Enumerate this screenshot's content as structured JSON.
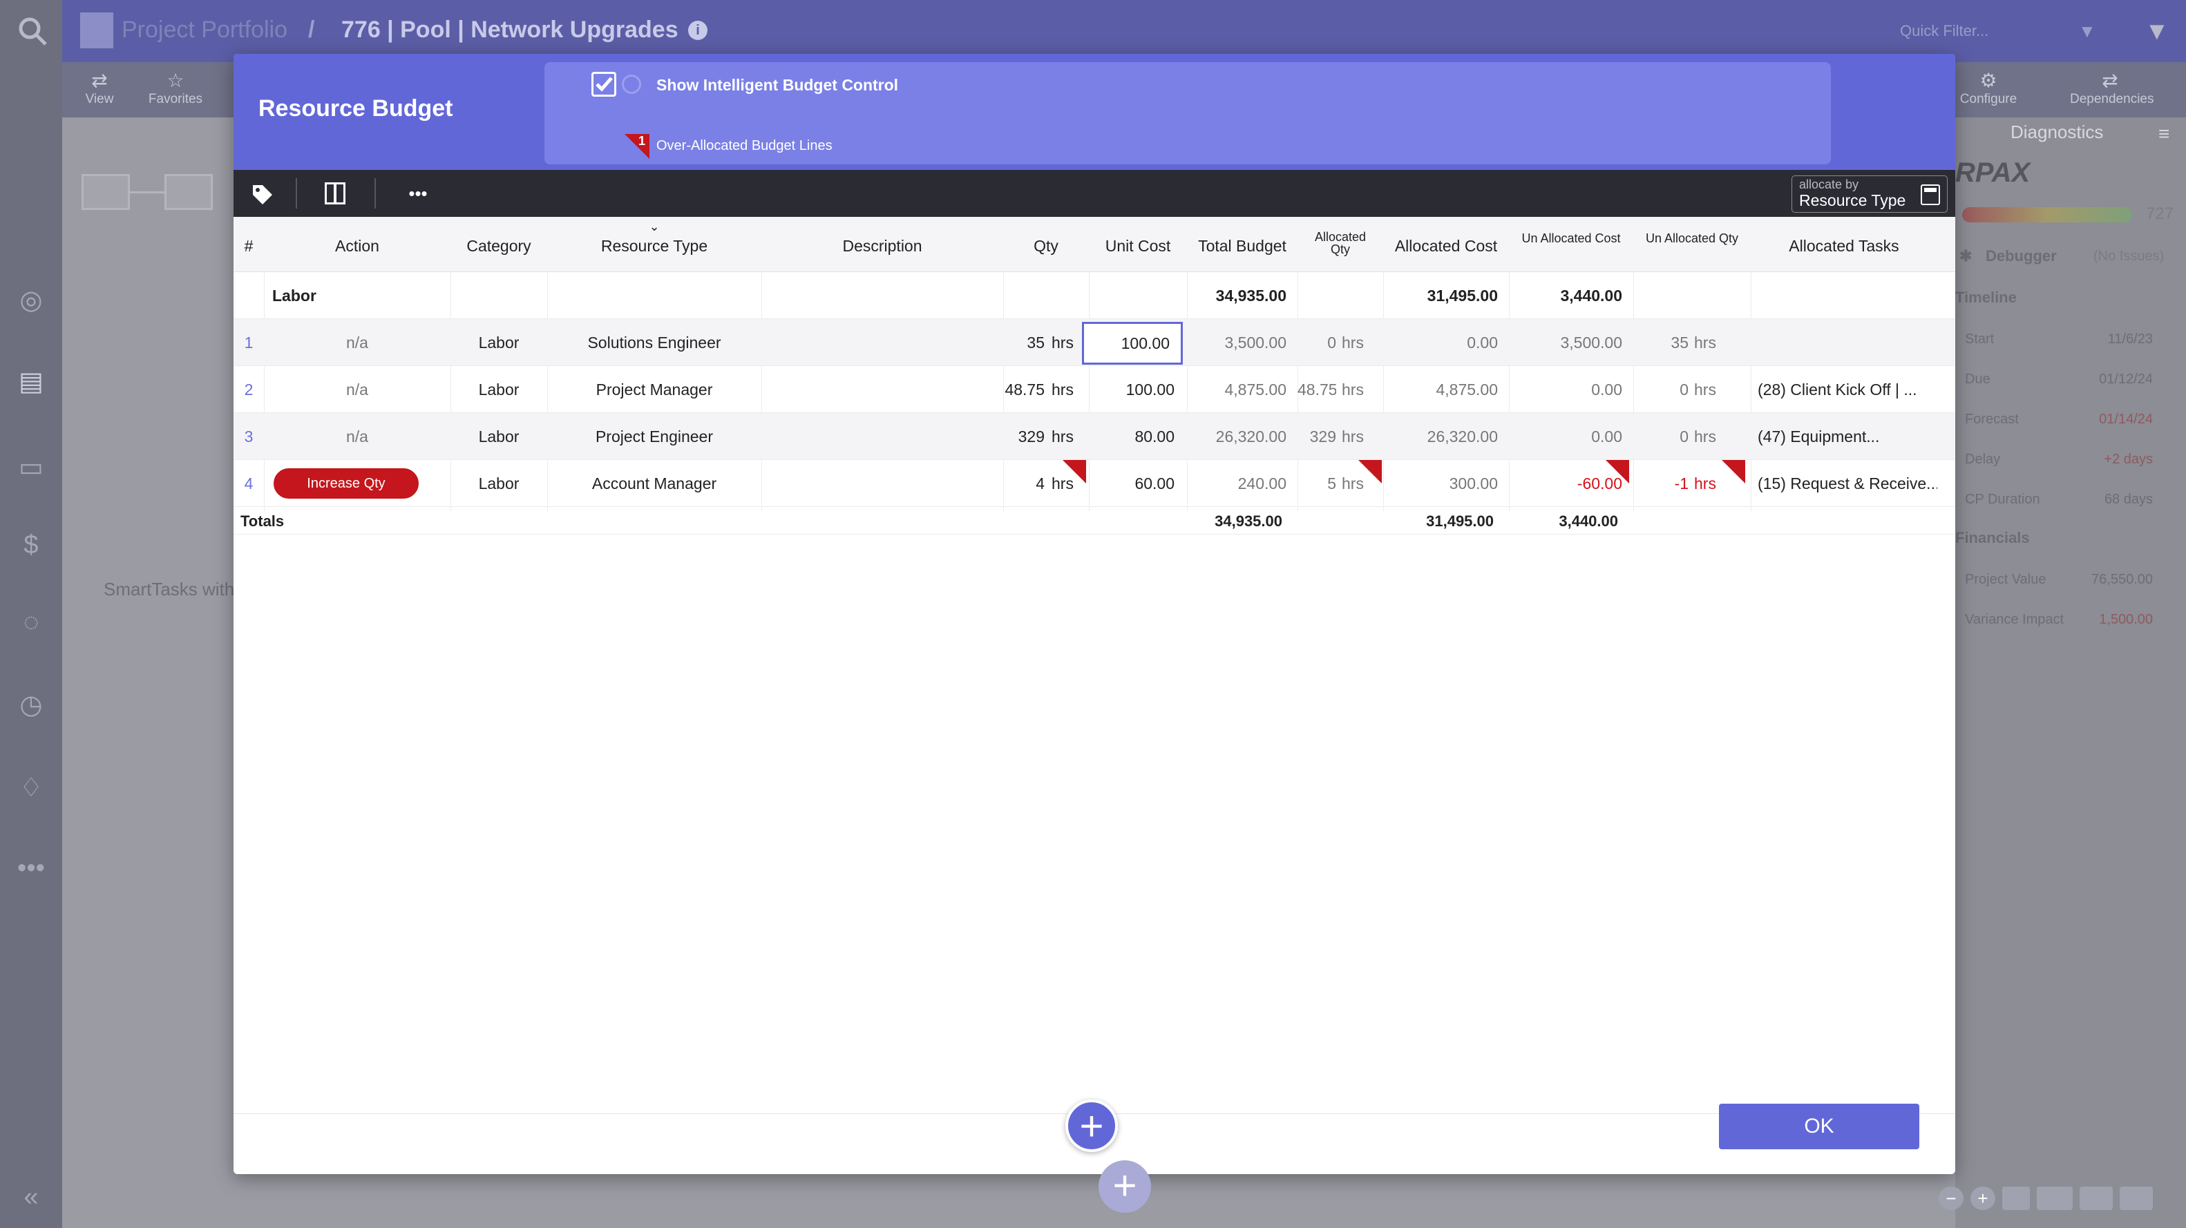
{
  "app": {
    "breadcrumb": {
      "root": "Project Portfolio",
      "separator": "/",
      "current": "776 | Pool | Network Upgrades"
    },
    "quick_filter_placeholder": "Quick Filter...",
    "toolbar": {
      "view": "View",
      "favorites": "Favorites",
      "configure": "Configure",
      "dependencies": "Dependencies"
    },
    "canvas_text": "SmartTasks with",
    "diagnostics": {
      "title": "Diagnostics",
      "logo": "RPAX",
      "score": "727",
      "debugger": "Debugger",
      "debugger_status": "(No Issues)",
      "timeline_head": "Timeline",
      "timeline": [
        {
          "label": "Start",
          "value": "11/6/23"
        },
        {
          "label": "Due",
          "value": "01/12/24"
        },
        {
          "label": "Forecast",
          "value": "01/14/24"
        },
        {
          "label": "Delay",
          "value": "+2 days"
        },
        {
          "label": "CP Duration",
          "value": "68 days"
        }
      ],
      "financials_head": "Financials",
      "financials": [
        {
          "label": "Project Value",
          "value": "76,550.00"
        },
        {
          "label": "Variance Impact",
          "value": "1,500.00"
        }
      ]
    }
  },
  "modal": {
    "title": "Resource Budget",
    "ibc_label": "Show Intelligent Budget Control",
    "over_alloc_count": "1",
    "over_alloc_label": "Over-Allocated Budget Lines",
    "allocate_by_caption": "allocate by",
    "allocate_by_value": "Resource Type",
    "ok_label": "OK",
    "columns": {
      "num": "#",
      "action": "Action",
      "category": "Category",
      "resource_type": "Resource Type",
      "description": "Description",
      "qty": "Qty",
      "unit_cost": "Unit Cost",
      "total_budget": "Total Budget",
      "allocated_qty_1": "Allocated",
      "allocated_qty_2": "Qty",
      "allocated_cost": "Allocated Cost",
      "unalloc_cost": "Un Allocated Cost",
      "unalloc_qty": "Un Allocated Qty",
      "allocated_tasks": "Allocated Tasks"
    },
    "group": {
      "name": "Labor",
      "total_budget": "34,935.00",
      "allocated_cost": "31,495.00",
      "unalloc_cost": "3,440.00"
    },
    "rows": [
      {
        "num": "1",
        "action": "n/a",
        "category": "Labor",
        "resource_type": "Solutions Engineer",
        "qty": "35",
        "qty_unit": "hrs",
        "unit_cost": "100.00",
        "total_budget": "3,500.00",
        "alloc_qty": "0",
        "alloc_qty_unit": "hrs",
        "alloc_cost": "0.00",
        "unalloc_cost": "3,500.00",
        "unalloc_qty": "35",
        "unalloc_qty_unit": "hrs",
        "tasks": ""
      },
      {
        "num": "2",
        "action": "n/a",
        "category": "Labor",
        "resource_type": "Project Manager",
        "qty": "48.75",
        "qty_unit": "hrs",
        "unit_cost": "100.00",
        "total_budget": "4,875.00",
        "alloc_qty": "48.75",
        "alloc_qty_unit": "hrs",
        "alloc_cost": "4,875.00",
        "unalloc_cost": "0.00",
        "unalloc_qty": "0",
        "unalloc_qty_unit": "hrs",
        "tasks": "(28) Client Kick Off  | ..."
      },
      {
        "num": "3",
        "action": "n/a",
        "category": "Labor",
        "resource_type": "Project Engineer",
        "qty": "329",
        "qty_unit": "hrs",
        "unit_cost": "80.00",
        "total_budget": "26,320.00",
        "alloc_qty": "329",
        "alloc_qty_unit": "hrs",
        "alloc_cost": "26,320.00",
        "unalloc_cost": "0.00",
        "unalloc_qty": "0",
        "unalloc_qty_unit": "hrs",
        "tasks": "(47) Equipment..."
      },
      {
        "num": "4",
        "action": "Increase Qty",
        "category": "Labor",
        "resource_type": "Account Manager",
        "qty": "4",
        "qty_unit": "hrs",
        "unit_cost": "60.00",
        "total_budget": "240.00",
        "alloc_qty": "5",
        "alloc_qty_unit": "hrs",
        "alloc_cost": "300.00",
        "unalloc_cost": "-60.00",
        "unalloc_qty": "-1",
        "unalloc_qty_unit": "hrs",
        "tasks": "(15) Request & Receive..."
      }
    ],
    "totals": {
      "label": "Totals",
      "total_budget": "34,935.00",
      "allocated_cost": "31,495.00",
      "unalloc_cost": "3,440.00"
    }
  },
  "colors": {
    "accent": "#6267d8",
    "alert": "#c4161c",
    "toolbar": "#2b2c33"
  }
}
